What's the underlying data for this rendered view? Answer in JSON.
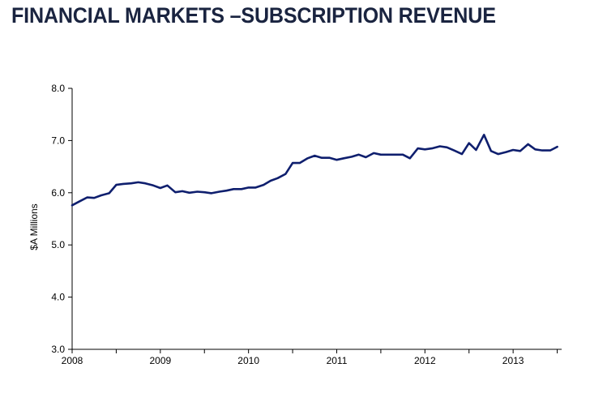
{
  "page": {
    "title": "FINANCIAL MARKETS –SUBSCRIPTION REVENUE"
  },
  "chart_data": {
    "type": "line",
    "title": "FINANCIAL MARKETS –SUBSCRIPTION REVENUE",
    "xlabel": "",
    "ylabel": "$A Millions",
    "ylim": [
      3.0,
      8.0
    ],
    "yticks": [
      "3.0",
      "4.0",
      "5.0",
      "6.0",
      "7.0",
      "8.0"
    ],
    "xticks": [
      "2008",
      "2009",
      "2010",
      "2011",
      "2012",
      "2013"
    ],
    "xlim": [
      2008,
      2013.55
    ],
    "grid": false,
    "legend": "none",
    "line_color": "#0f1f6e",
    "series": [
      {
        "x": [
          2008.0,
          2008.08,
          2008.17,
          2008.25,
          2008.33,
          2008.42,
          2008.5,
          2008.58,
          2008.67,
          2008.75,
          2008.83,
          2008.92,
          2009.0,
          2009.08,
          2009.17,
          2009.25,
          2009.33,
          2009.42,
          2009.5,
          2009.58,
          2009.67,
          2009.75,
          2009.83,
          2009.92,
          2010.0,
          2010.08,
          2010.17,
          2010.25,
          2010.33,
          2010.42,
          2010.5,
          2010.58,
          2010.67,
          2010.75,
          2010.83,
          2010.92,
          2011.0,
          2011.08,
          2011.17,
          2011.25,
          2011.33,
          2011.42,
          2011.5,
          2011.58,
          2011.67,
          2011.75,
          2011.83,
          2011.92,
          2012.0,
          2012.08,
          2012.17,
          2012.25,
          2012.33,
          2012.42,
          2012.5,
          2012.58,
          2012.67,
          2012.75,
          2012.83,
          2012.92,
          2013.0,
          2013.08,
          2013.17,
          2013.25,
          2013.33,
          2013.42,
          2013.5
        ],
        "values": [
          5.76,
          5.83,
          5.91,
          5.9,
          5.95,
          5.99,
          6.15,
          6.17,
          6.18,
          6.2,
          6.18,
          6.14,
          6.09,
          6.14,
          6.01,
          6.03,
          6.0,
          6.02,
          6.01,
          5.99,
          6.02,
          6.04,
          6.07,
          6.07,
          6.1,
          6.1,
          6.15,
          6.23,
          6.28,
          6.36,
          6.57,
          6.57,
          6.66,
          6.71,
          6.67,
          6.67,
          6.63,
          6.66,
          6.69,
          6.73,
          6.68,
          6.76,
          6.73,
          6.73,
          6.73,
          6.73,
          6.66,
          6.85,
          6.83,
          6.85,
          6.89,
          6.87,
          6.81,
          6.74,
          6.95,
          6.82,
          7.11,
          6.8,
          6.74,
          6.78,
          6.82,
          6.8,
          6.93,
          6.83,
          6.81,
          6.81,
          6.88
        ]
      }
    ]
  }
}
